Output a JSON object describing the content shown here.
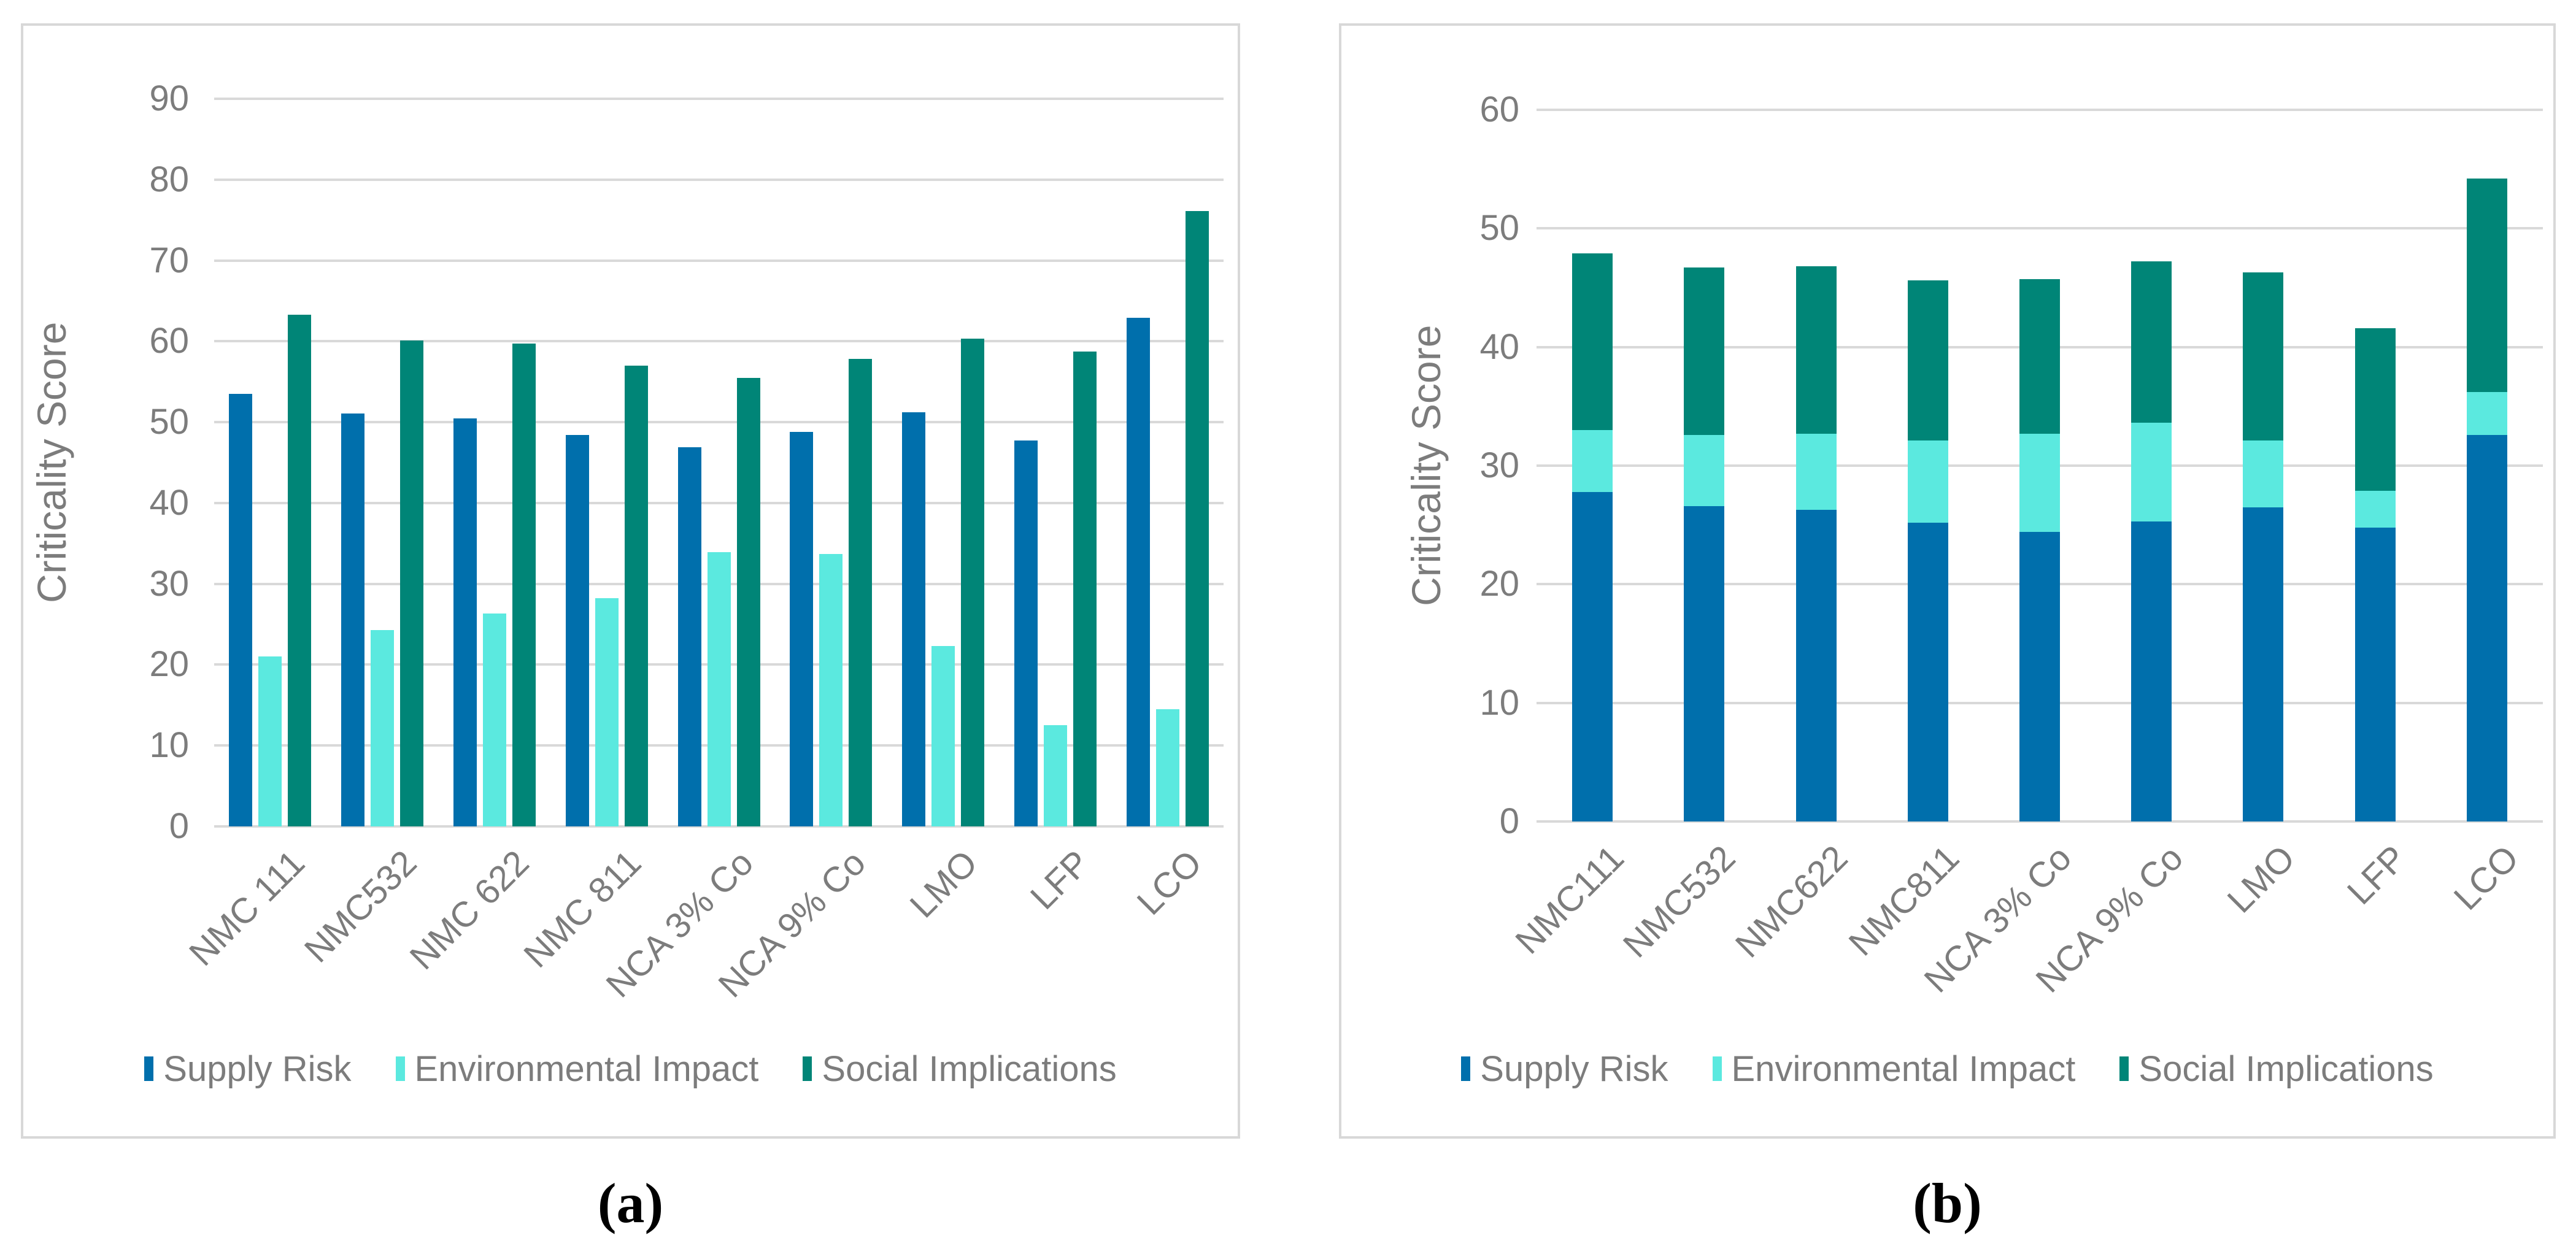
{
  "styles": {
    "background": "#FFFFFF",
    "gridline_color": "#D9D9D9",
    "axis_text_color": "#7C7C7C",
    "panel_border_color": "#D8D8D8",
    "caption_color": "#000000",
    "series_colors": {
      "supply_risk": "#006FAC",
      "environmental_impact": "#5BE9DF",
      "social_implications": "#008577"
    }
  },
  "chart_data": [
    {
      "type": "bar",
      "subtype": "grouped",
      "caption": "(a)",
      "title": "",
      "xlabel": "",
      "ylabel": "Criticality Score",
      "ylim": [
        0,
        90
      ],
      "ytick_step": 10,
      "ytick_labels": [
        "0",
        "10",
        "20",
        "30",
        "40",
        "50",
        "60",
        "70",
        "80",
        "90"
      ],
      "grid": true,
      "legend_position": "bottom",
      "categories": [
        "NMC 111",
        "NMC532",
        "NMC 622",
        "NMC 811",
        "NCA 3% Co",
        "NCA 9% Co",
        "LMO",
        "LFP",
        "LCO"
      ],
      "series": [
        {
          "name": "Supply Risk",
          "color": "#006FAC",
          "values": [
            53.5,
            51.1,
            50.5,
            48.4,
            46.9,
            48.8,
            51.2,
            47.7,
            62.9
          ]
        },
        {
          "name": "Environmental Impact",
          "color": "#5BE9DF",
          "values": [
            21.0,
            24.3,
            26.3,
            28.2,
            33.9,
            33.7,
            22.3,
            12.5,
            14.5
          ]
        },
        {
          "name": "Social Implications",
          "color": "#008577",
          "values": [
            63.3,
            60.1,
            59.7,
            57.0,
            55.5,
            57.8,
            60.3,
            58.7,
            76.1
          ]
        }
      ]
    },
    {
      "type": "bar",
      "subtype": "stacked",
      "caption": "(b)",
      "title": "",
      "xlabel": "",
      "ylabel": "Criticality Score",
      "ylim": [
        0,
        60
      ],
      "ytick_step": 10,
      "ytick_labels": [
        "0",
        "10",
        "20",
        "30",
        "40",
        "50",
        "60"
      ],
      "grid": true,
      "legend_position": "bottom",
      "categories": [
        "NMC111",
        "NMC532",
        "NMC622",
        "NMC811",
        "NCA 3% Co",
        "NCA 9% Co",
        "LMO",
        "LFP",
        "LCO"
      ],
      "series": [
        {
          "name": "Supply Risk",
          "color": "#006FAC",
          "values": [
            27.8,
            26.6,
            26.3,
            25.2,
            24.4,
            25.3,
            26.5,
            24.8,
            32.6
          ]
        },
        {
          "name": "Environmental Impact",
          "color": "#5BE9DF",
          "values": [
            5.2,
            6.0,
            6.4,
            6.9,
            8.3,
            8.3,
            5.6,
            3.1,
            3.6
          ]
        },
        {
          "name": "Social Implications",
          "color": "#008577",
          "values": [
            14.9,
            14.1,
            14.1,
            13.5,
            13.0,
            13.6,
            14.2,
            13.7,
            18.0
          ]
        }
      ],
      "stack_totals": [
        47.9,
        46.7,
        46.8,
        45.6,
        45.7,
        47.2,
        46.3,
        41.6,
        54.2
      ]
    }
  ]
}
